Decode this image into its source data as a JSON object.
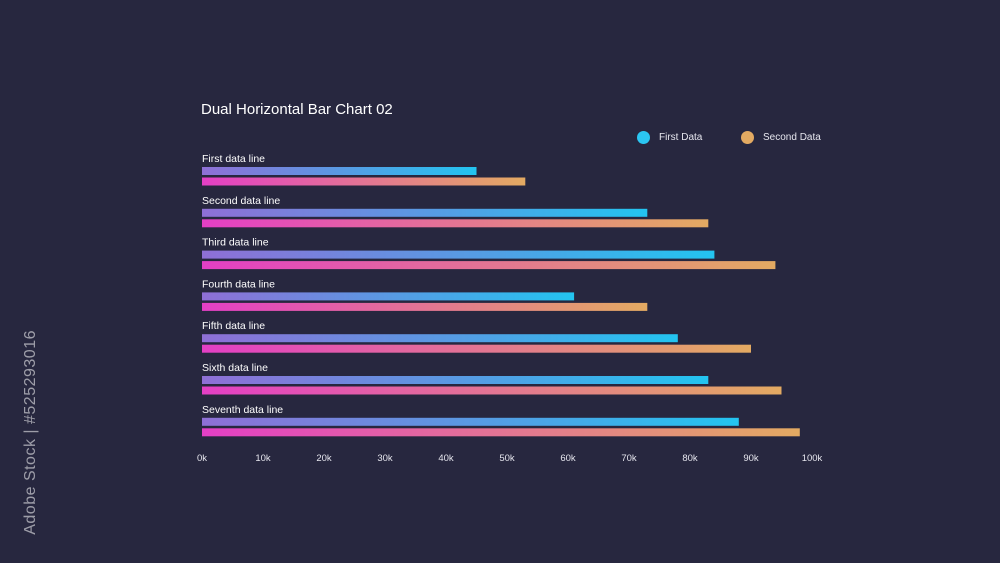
{
  "watermark_text": "Adobe Stock | #525293016",
  "colors": {
    "background": "#27273f",
    "first_start": "#8f6fd6",
    "first_end": "#23c4f0",
    "second_start": "#e33fc5",
    "second_end": "#e3aa62"
  },
  "legend": {
    "first": {
      "label": "First Data",
      "color": "#2bc6f2"
    },
    "second": {
      "label": "Second Data",
      "color": "#e3aa62"
    }
  },
  "chart_data": {
    "type": "bar",
    "orientation": "horizontal",
    "title": "Dual Horizontal Bar Chart 02",
    "xlabel": "",
    "ylabel": "",
    "xlim": [
      0,
      100000
    ],
    "x_ticks": [
      "0k",
      "10k",
      "20k",
      "30k",
      "40k",
      "50k",
      "60k",
      "70k",
      "80k",
      "90k",
      "100k"
    ],
    "grid": false,
    "legend_position": "top-right",
    "categories": [
      "First data line",
      "Second data line",
      "Third data line",
      "Fourth data line",
      "Fifth data line",
      "Sixth data line",
      "Seventh data line"
    ],
    "series": [
      {
        "name": "First Data",
        "values": [
          45000,
          73000,
          84000,
          61000,
          78000,
          83000,
          88000
        ]
      },
      {
        "name": "Second Data",
        "values": [
          53000,
          83000,
          94000,
          73000,
          90000,
          95000,
          98000
        ]
      }
    ]
  }
}
